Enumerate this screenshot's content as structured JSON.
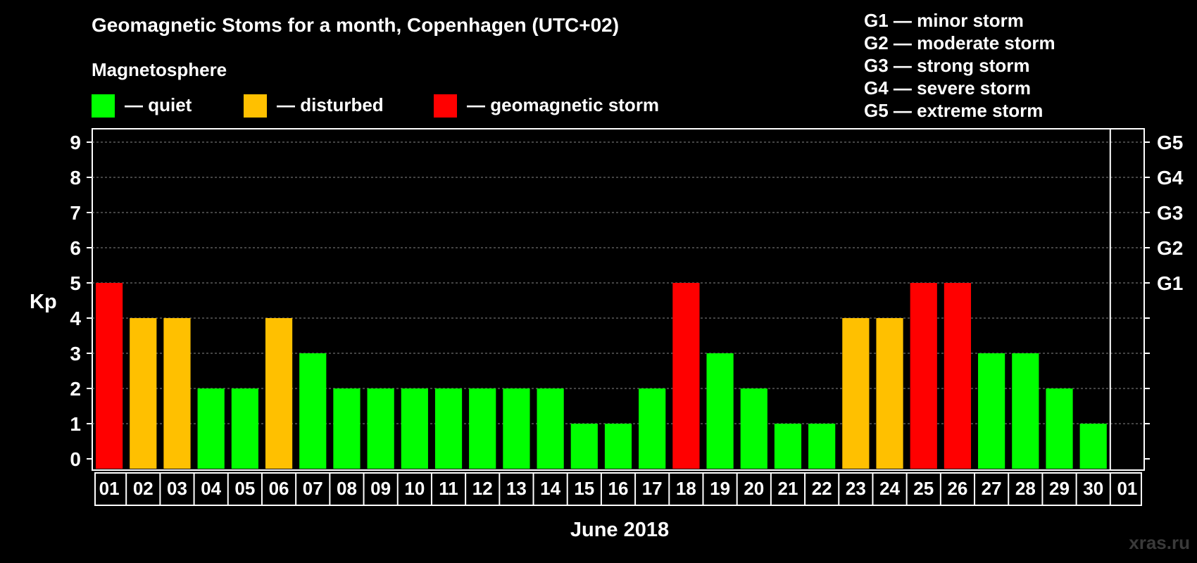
{
  "header": {
    "title": "Geomagnetic Stoms for a month, Copenhagen (UTC+02)",
    "legend_heading": "Magnetosphere"
  },
  "legend": [
    {
      "label": "— quiet",
      "color": "#00ff00"
    },
    {
      "label": "— disturbed",
      "color": "#ffc000"
    },
    {
      "label": "— geomagnetic storm",
      "color": "#ff0000"
    }
  ],
  "g_scale": [
    "G1 — minor storm",
    "G2 — moderate storm",
    "G3 — strong storm",
    "G4 — severe storm",
    "G5 — extreme storm"
  ],
  "watermark": "xras.ru",
  "chart_data": {
    "type": "bar",
    "title": "Geomagnetic Stoms for a month, Copenhagen (UTC+02)",
    "xlabel": "June 2018",
    "ylabel": "Kp",
    "ylim": [
      0,
      9
    ],
    "yticks": [
      "0",
      "1",
      "2",
      "3",
      "4",
      "5",
      "6",
      "7",
      "8",
      "9"
    ],
    "right_axis_labels": [
      {
        "value": 5,
        "label": "G1"
      },
      {
        "value": 6,
        "label": "G2"
      },
      {
        "value": 7,
        "label": "G3"
      },
      {
        "value": 8,
        "label": "G4"
      },
      {
        "value": 9,
        "label": "G5"
      }
    ],
    "categories": [
      "01",
      "02",
      "03",
      "04",
      "05",
      "06",
      "07",
      "08",
      "09",
      "10",
      "11",
      "12",
      "13",
      "14",
      "15",
      "16",
      "17",
      "18",
      "19",
      "20",
      "21",
      "22",
      "23",
      "24",
      "25",
      "26",
      "27",
      "28",
      "29",
      "30",
      "01"
    ],
    "values": [
      5,
      4,
      4,
      2,
      2,
      4,
      3,
      2,
      2,
      2,
      2,
      2,
      2,
      2,
      1,
      1,
      2,
      5,
      3,
      2,
      1,
      1,
      4,
      4,
      5,
      5,
      3,
      3,
      2,
      1,
      null
    ],
    "color_rule": {
      "quiet_max": 3,
      "disturbed": 4,
      "storm_min": 5
    },
    "colors": {
      "quiet": "#00ff00",
      "disturbed": "#ffc000",
      "storm": "#ff0000",
      "grid": "#888888"
    }
  }
}
